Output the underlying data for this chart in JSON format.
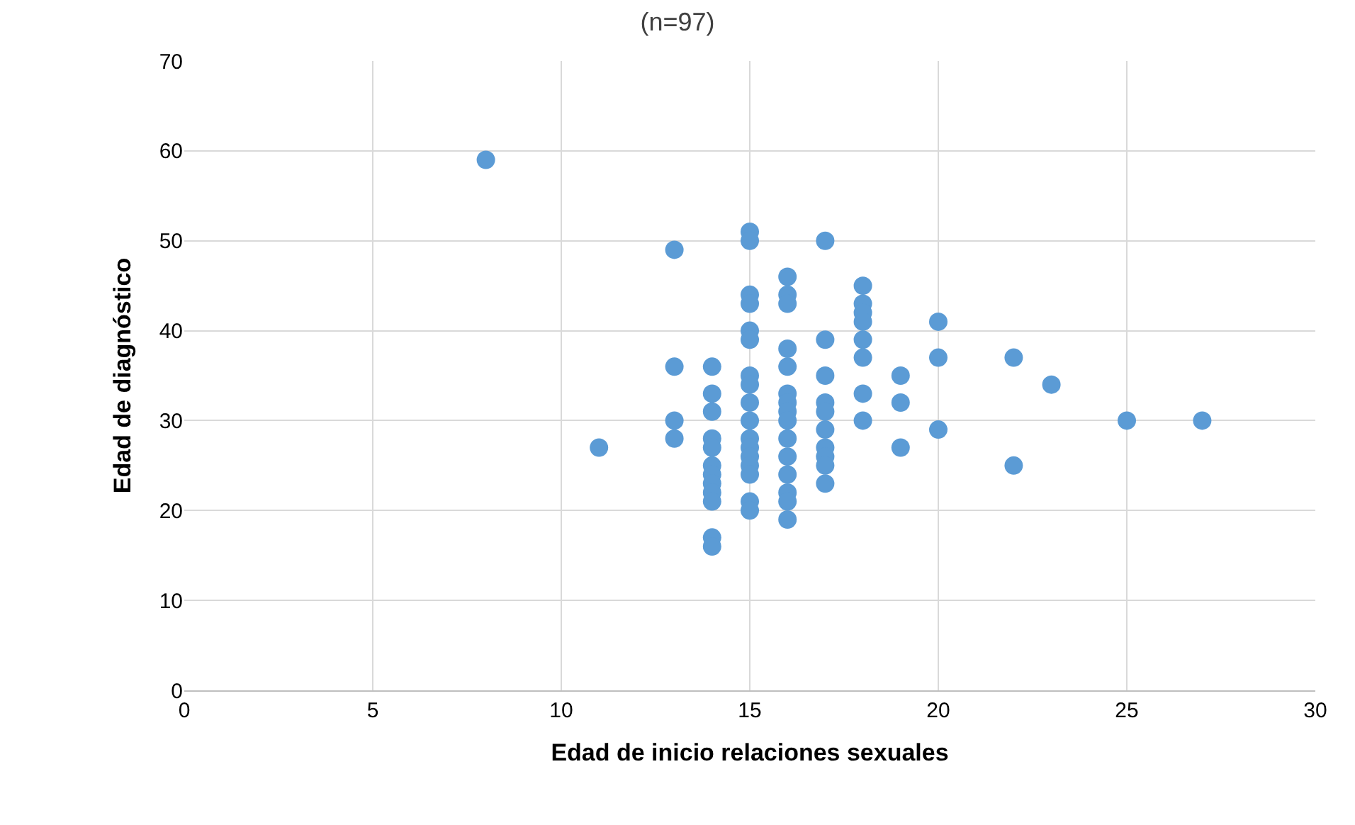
{
  "chart_data": {
    "type": "scatter",
    "title": "(n=97)",
    "xlabel": "Edad de inicio relaciones sexuales",
    "ylabel": "Edad de diagnóstico",
    "x": [
      8,
      11,
      13,
      13,
      13,
      13,
      14,
      14,
      14,
      14,
      14,
      14,
      14,
      14,
      14,
      14,
      14,
      14,
      15,
      15,
      15,
      15,
      15,
      15,
      15,
      15,
      15,
      15,
      15,
      15,
      15,
      15,
      15,
      15,
      15,
      16,
      16,
      16,
      16,
      16,
      16,
      16,
      16,
      16,
      16,
      16,
      16,
      16,
      16,
      16,
      17,
      17,
      17,
      17,
      17,
      17,
      17,
      17,
      17,
      17,
      18,
      18,
      18,
      18,
      18,
      18,
      18,
      18,
      19,
      19,
      19,
      20,
      20,
      20,
      22,
      22,
      23,
      25,
      27
    ],
    "series": [
      {
        "color": "#5b9bd5",
        "values": [
          59,
          27,
          49,
          36,
          30,
          28,
          36,
          33,
          31,
          28,
          27,
          25,
          24,
          23,
          22,
          21,
          17,
          16,
          51,
          50,
          44,
          43,
          40,
          39,
          35,
          34,
          32,
          30,
          28,
          27,
          26,
          25,
          24,
          21,
          20,
          46,
          44,
          43,
          38,
          36,
          33,
          32,
          31,
          30,
          28,
          26,
          24,
          22,
          21,
          19,
          50,
          39,
          35,
          32,
          31,
          29,
          27,
          26,
          25,
          23,
          45,
          43,
          42,
          41,
          39,
          37,
          33,
          30,
          35,
          32,
          27,
          41,
          37,
          29,
          37,
          25,
          34,
          30,
          30
        ]
      }
    ],
    "xlim": [
      0,
      30
    ],
    "xticks": [
      0,
      5,
      10,
      15,
      20,
      25,
      30
    ],
    "ylim": [
      0,
      70
    ],
    "yticks": [
      0,
      10,
      20,
      30,
      40,
      50,
      60,
      70
    ],
    "grid": true,
    "marker": "circle"
  }
}
